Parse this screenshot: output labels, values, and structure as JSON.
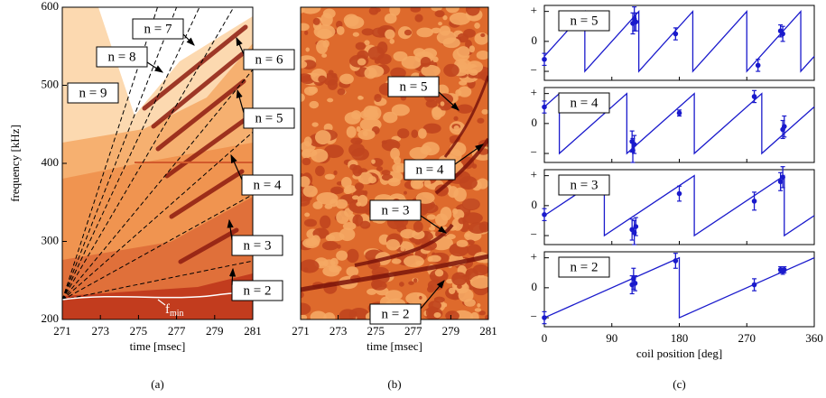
{
  "chart_data": [
    {
      "type": "spectrogram",
      "xlabel": "time [msec]",
      "ylabel": "frequency [kHz]",
      "caption": "(a)",
      "xlim": [
        271,
        281
      ],
      "xticks": [
        271,
        273,
        275,
        277,
        279,
        281
      ],
      "ylim": [
        200,
        600
      ],
      "yticks": [
        200,
        300,
        400,
        500,
        600
      ],
      "mode_lines": [
        {
          "x": [
            271,
            281
          ],
          "values": [
            225,
            275
          ]
        },
        {
          "x": [
            271,
            281
          ],
          "values": [
            225,
            360
          ]
        },
        {
          "x": [
            271,
            281
          ],
          "values": [
            225,
            440
          ]
        },
        {
          "x": [
            271,
            281
          ],
          "values": [
            225,
            520
          ]
        },
        {
          "x": [
            271,
            280
          ],
          "values": [
            225,
            600
          ]
        },
        {
          "x": [
            271,
            278.2
          ],
          "values": [
            225,
            600
          ]
        },
        {
          "x": [
            271,
            277
          ],
          "values": [
            225,
            600
          ]
        },
        {
          "x": [
            271,
            276
          ],
          "values": [
            225,
            600
          ]
        }
      ],
      "annotations": [
        "n = 2",
        "n = 3",
        "n = 4",
        "n = 5",
        "n = 6",
        "n = 7",
        "n = 8",
        "n = 9"
      ],
      "fmin": {
        "text": "f",
        "subscript": "min"
      }
    },
    {
      "type": "spectrogram",
      "xlabel": "time [msec]",
      "caption": "(b)",
      "xlim": [
        271,
        281
      ],
      "xticks": [
        271,
        273,
        275,
        277,
        279,
        281
      ],
      "annotations": [
        "n = 2",
        "n = 3",
        "n = 4",
        "n = 5"
      ]
    },
    {
      "type": "phase",
      "xlabel": "coil position [deg]",
      "caption": "(c)",
      "xlim": [
        0,
        360
      ],
      "xticks": [
        0,
        90,
        180,
        270,
        360
      ],
      "ylim": [
        -1.3,
        1.2
      ],
      "yticks": [
        {
          "value": -1,
          "label": "−"
        },
        0,
        {
          "value": 1,
          "label": "+"
        }
      ],
      "color": "#1a1acc",
      "subplots": [
        {
          "label": "n = 5",
          "x": [
            0,
            118,
            120,
            122,
            175,
            285,
            315,
            318
          ],
          "values": [
            -0.6,
            0.6,
            0.75,
            0.65,
            0.25,
            -0.8,
            0.35,
            0.25
          ],
          "errors": [
            0.2,
            0.35,
            0.4,
            0.3,
            0.2,
            0.2,
            0.2,
            0.25
          ],
          "fit": {
            "x": [
              0,
              54,
              54,
              126,
              126,
              198,
              198,
              270,
              270,
              342,
              342,
              360
            ],
            "values": [
              -0.5,
              1,
              -1,
              1,
              -1,
              1,
              -1,
              1,
              -1,
              1,
              -1,
              -0.5
            ]
          }
        },
        {
          "label": "n = 4",
          "x": [
            0,
            117,
            118,
            120,
            180,
            280,
            318,
            320
          ],
          "values": [
            0.55,
            -0.6,
            -0.9,
            -0.7,
            0.35,
            0.9,
            -0.2,
            -0.1
          ],
          "errors": [
            0.2,
            0.35,
            0.4,
            0.3,
            0.1,
            0.2,
            0.3,
            0.35
          ],
          "fit": {
            "x": [
              0,
              20,
              20,
              110,
              110,
              200,
              200,
              290,
              290,
              360
            ],
            "values": [
              0.556,
              1,
              -1,
              1,
              -1,
              1,
              -1,
              1,
              -1,
              0.556
            ]
          }
        },
        {
          "label": "n = 3",
          "x": [
            0,
            117,
            120,
            122,
            180,
            280,
            315,
            318
          ],
          "values": [
            -0.3,
            -0.8,
            -0.9,
            -0.7,
            0.4,
            0.15,
            0.8,
            0.95
          ],
          "errors": [
            0.2,
            0.35,
            0.4,
            0.3,
            0.25,
            0.3,
            0.3,
            0.35
          ],
          "fit": {
            "x": [
              0,
              80,
              80,
              200,
              200,
              320,
              320,
              360
            ],
            "values": [
              -0.333,
              1,
              -1,
              1,
              -1,
              1,
              -1,
              -0.333
            ]
          }
        },
        {
          "label": "n = 2",
          "x": [
            0,
            117,
            119,
            121,
            175,
            280,
            315,
            318,
            320
          ],
          "values": [
            -1,
            0.1,
            0.3,
            0.15,
            0.9,
            0.1,
            0.6,
            0.55,
            0.6
          ],
          "errors": [
            0.2,
            0.3,
            0.35,
            0.25,
            0.25,
            0.2,
            0.1,
            0.1,
            0.1
          ],
          "fit": {
            "x": [
              0,
              180,
              180,
              360
            ],
            "values": [
              -1,
              1,
              -1,
              1
            ]
          }
        }
      ]
    }
  ]
}
